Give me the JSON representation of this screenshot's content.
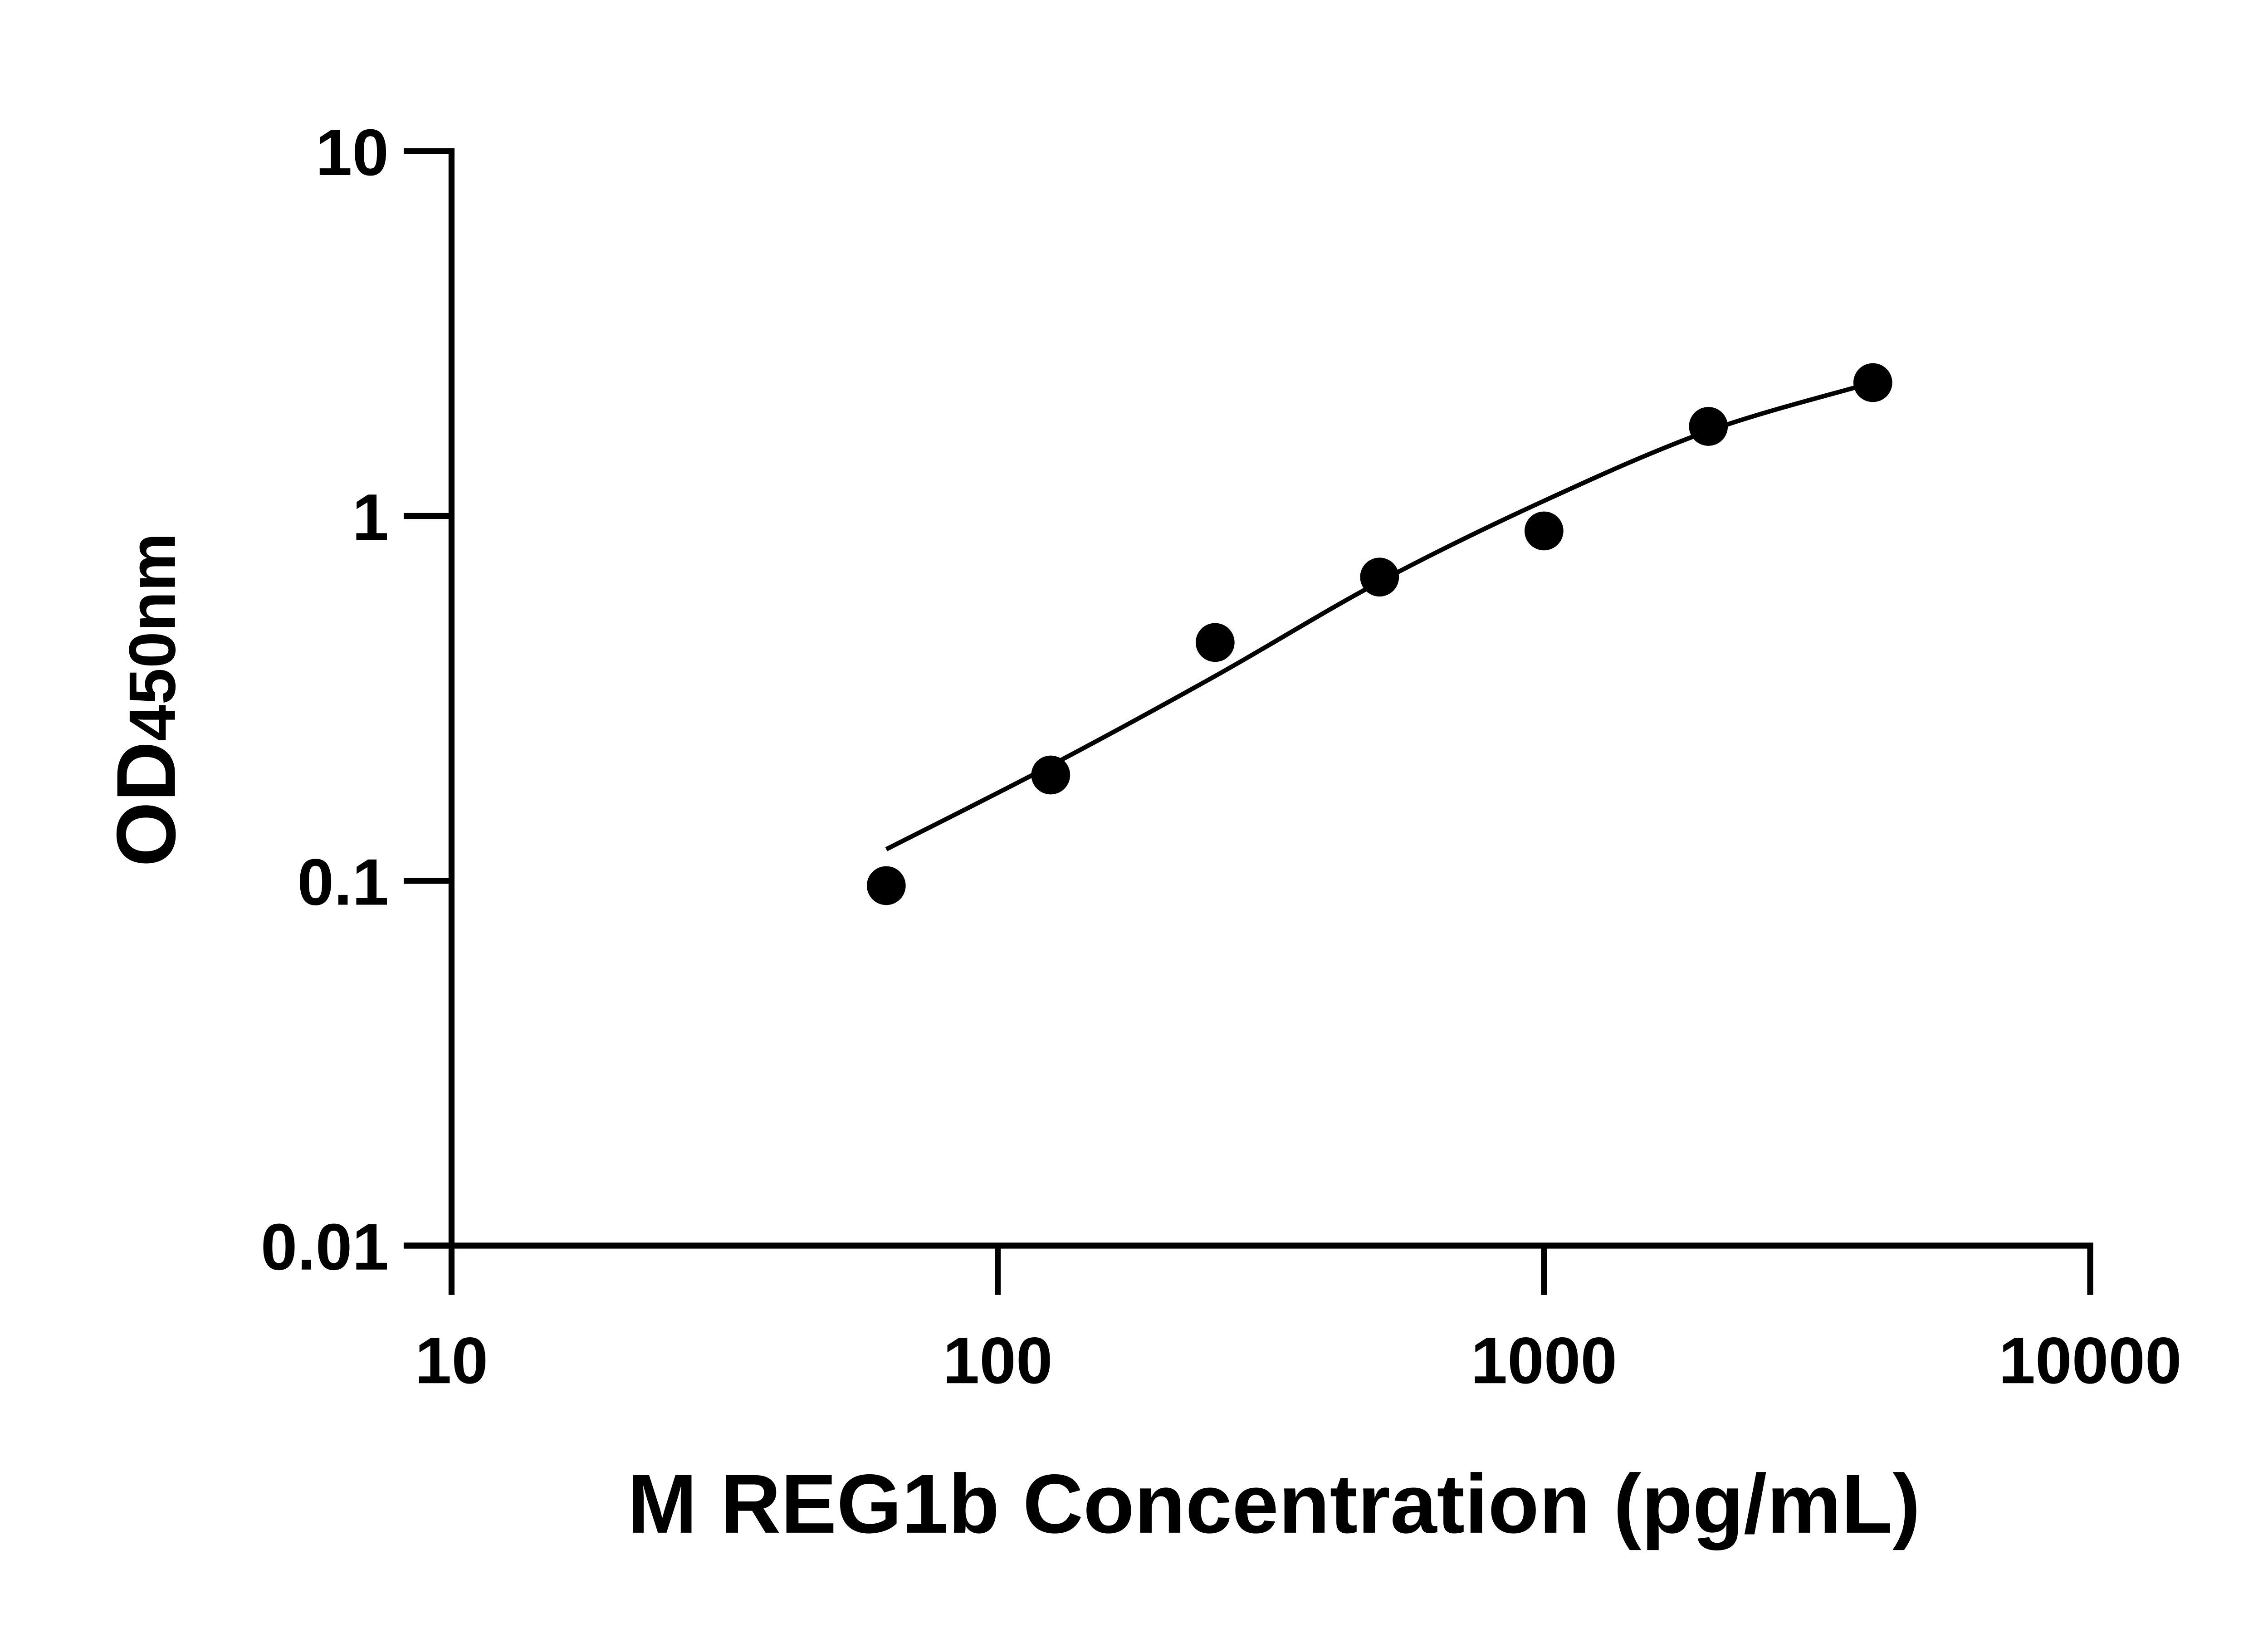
{
  "chart_data": {
    "type": "scatter",
    "title": "",
    "xlabel": "M REG1b Concentration (pg/mL)",
    "ylabel_main": "OD",
    "ylabel_sub": "450nm",
    "x_scale": "log",
    "y_scale": "log",
    "xlim": [
      10,
      10000
    ],
    "ylim": [
      0.01,
      10
    ],
    "x_ticks": [
      "10",
      "100",
      "1000",
      "10000"
    ],
    "y_ticks": [
      "0.01",
      "0.1",
      "1",
      "10"
    ],
    "grid": false,
    "legend": "none",
    "marker_color": "#000000",
    "points": {
      "x": [
        62.5,
        125,
        250,
        500,
        1000,
        2000,
        4000
      ],
      "y": [
        0.097,
        0.195,
        0.45,
        0.68,
        0.91,
        1.76,
        2.32
      ]
    },
    "fit_curve": {
      "x": [
        62.5,
        125,
        250,
        500,
        1000,
        2000,
        4000
      ],
      "y": [
        0.122,
        0.207,
        0.364,
        0.66,
        1.1,
        1.71,
        2.32
      ]
    }
  }
}
